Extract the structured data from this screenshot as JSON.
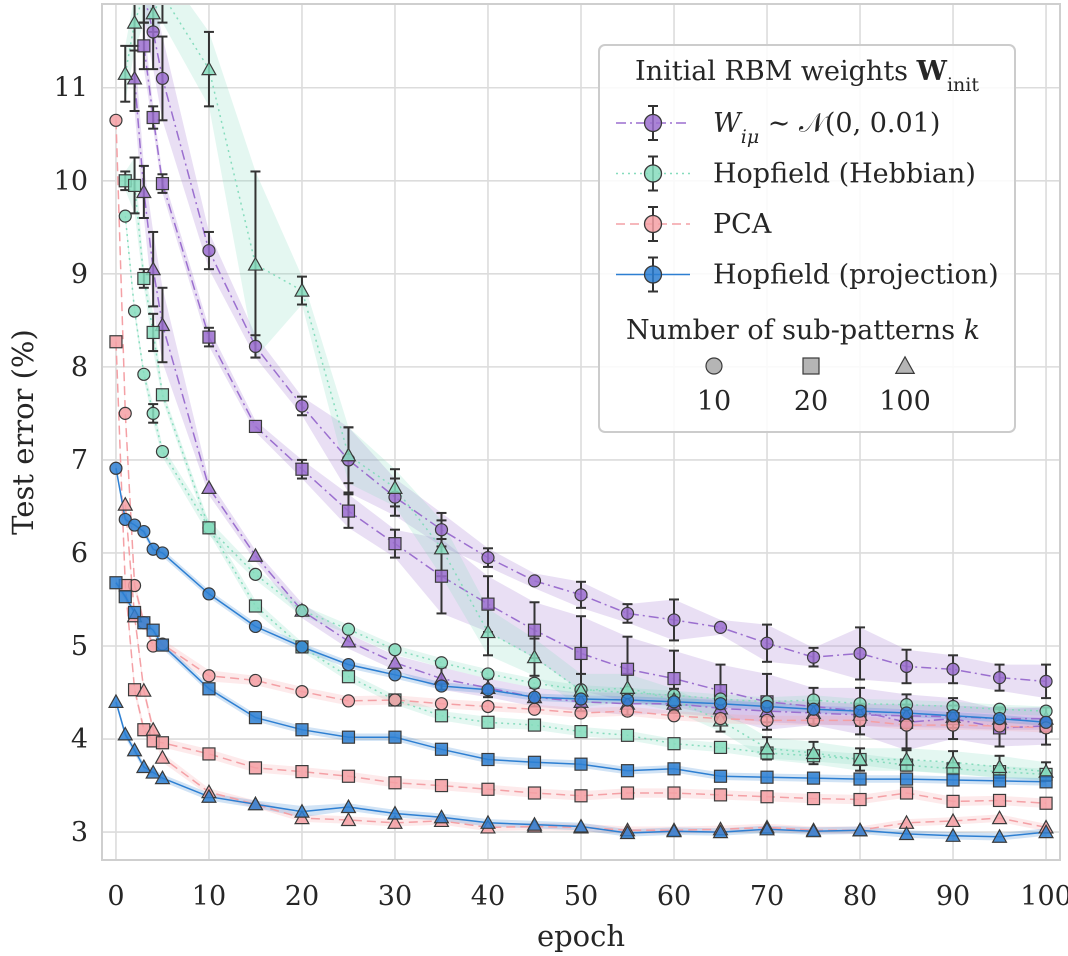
{
  "chart_data": {
    "type": "line",
    "xlabel": "epoch",
    "ylabel": "Test error (%)",
    "xlim": [
      -1.5,
      101.5
    ],
    "ylim": [
      2.7,
      11.9
    ],
    "xticks": [
      0,
      10,
      20,
      30,
      40,
      50,
      60,
      70,
      80,
      90,
      100
    ],
    "yticks": [
      3,
      4,
      5,
      6,
      7,
      8,
      9,
      10,
      11
    ],
    "grid": true,
    "x": [
      0,
      1,
      2,
      3,
      4,
      5,
      10,
      15,
      20,
      25,
      30,
      35,
      40,
      45,
      50,
      55,
      60,
      65,
      70,
      75,
      80,
      85,
      90,
      95,
      100
    ],
    "legend": {
      "placement": "top-right",
      "title": "Initial RBM weights W_init",
      "title_main": "Initial RBM weights ",
      "title_bold": "W",
      "title_sub": "init",
      "entries": [
        {
          "label": "W_iμ ~ N(0, 0.01)",
          "label_main": "W",
          "label_sub": "iμ",
          "label_rest": " ∼ 𝒩(0, 0.01)",
          "color": "#9b6fcf",
          "linestyle": "dashdot"
        },
        {
          "label": "Hopfield (Hebbian)",
          "color": "#86dcbd",
          "linestyle": "dotted"
        },
        {
          "label": "PCA",
          "color": "#f4a0a5",
          "linestyle": "dashed"
        },
        {
          "label": "Hopfield (projection)",
          "color": "#2d7fd2",
          "linestyle": "solid"
        }
      ],
      "marker_title": "Number of sub-patterns k",
      "marker_title_main": "Number of sub-patterns ",
      "marker_title_var": "k",
      "markers": [
        {
          "shape": "circle",
          "label": "10"
        },
        {
          "shape": "square",
          "label": "20"
        },
        {
          "shape": "triangle",
          "label": "100"
        }
      ]
    },
    "series": [
      {
        "group": "Random",
        "k": "10",
        "marker": "circle",
        "color": "#9b6fcf",
        "linestyle": "dashdot",
        "y": [
          null,
          null,
          null,
          12.0,
          11.6,
          11.1,
          9.25,
          8.22,
          7.58,
          7.0,
          6.6,
          6.25,
          5.95,
          5.7,
          5.55,
          5.35,
          5.28,
          5.2,
          5.03,
          4.88,
          4.92,
          4.78,
          4.75,
          4.66,
          4.62
        ],
        "err": [
          0,
          0,
          0,
          0.3,
          0.4,
          0.45,
          0.2,
          0.12,
          0.1,
          0.35,
          0.2,
          0.18,
          0.1,
          0.08,
          0.14,
          0.1,
          0.22,
          0.08,
          0.2,
          0.1,
          0.28,
          0.18,
          0.15,
          0.14,
          0.18
        ]
      },
      {
        "group": "Random",
        "k": "20",
        "marker": "square",
        "color": "#9b6fcf",
        "linestyle": "dashdot",
        "y": [
          null,
          null,
          null,
          11.45,
          10.68,
          9.97,
          8.32,
          7.36,
          6.9,
          6.45,
          6.1,
          5.75,
          5.45,
          5.17,
          4.92,
          4.75,
          4.65,
          4.52,
          4.4,
          4.35,
          4.3,
          4.18,
          4.22,
          4.12,
          4.14
        ],
        "err": [
          0,
          0,
          0,
          0.25,
          0.12,
          0.1,
          0.1,
          0.06,
          0.1,
          0.18,
          0.15,
          0.4,
          0.3,
          0.3,
          0.4,
          0.35,
          0.3,
          0.28,
          0.3,
          0.2,
          0.25,
          0.3,
          0.22,
          0.2,
          0.2
        ]
      },
      {
        "group": "Random",
        "k": "100",
        "marker": "triangle",
        "color": "#9b6fcf",
        "linestyle": "dashdot",
        "y": [
          null,
          null,
          11.1,
          9.88,
          9.05,
          8.45,
          6.7,
          5.97,
          5.38,
          5.05,
          4.82,
          4.65,
          4.55,
          4.45,
          4.4,
          4.38,
          4.38,
          4.33,
          4.3,
          4.28,
          4.26,
          4.25,
          4.24,
          4.22,
          4.22
        ],
        "err": [
          0,
          0,
          0.35,
          0.28,
          0.4,
          0.4,
          0.08,
          0.06,
          0.08,
          0.08,
          0.08,
          0.12,
          0.1,
          0.1,
          0.1,
          0.12,
          0.1,
          0.1,
          0.12,
          0.12,
          0.12,
          0.12,
          0.12,
          0.12,
          0.12
        ]
      },
      {
        "group": "Hebbian",
        "k": "10",
        "marker": "circle",
        "color": "#86dcbd",
        "linestyle": "dotted",
        "y": [
          null,
          9.62,
          8.6,
          7.92,
          7.5,
          7.09,
          6.27,
          5.77,
          5.38,
          5.18,
          4.96,
          4.82,
          4.7,
          4.6,
          4.53,
          4.5,
          4.47,
          4.43,
          4.4,
          4.42,
          4.38,
          4.37,
          4.35,
          4.32,
          4.3
        ],
        "err": [
          0,
          0.06,
          0.06,
          0.06,
          0.1,
          0.06,
          0.08,
          0.06,
          0.06,
          0.05,
          0.05,
          0.05,
          0.05,
          0.05,
          0.05,
          0.05,
          0.05,
          0.05,
          0.05,
          0.05,
          0.05,
          0.05,
          0.05,
          0.05,
          0.05
        ]
      },
      {
        "group": "Hebbian",
        "k": "20",
        "marker": "square",
        "color": "#86dcbd",
        "linestyle": "dotted",
        "y": [
          null,
          10.0,
          9.95,
          8.95,
          8.37,
          7.7,
          6.27,
          5.43,
          4.99,
          4.67,
          4.42,
          4.25,
          4.18,
          4.15,
          4.08,
          4.04,
          3.95,
          3.91,
          3.85,
          3.82,
          3.78,
          3.72,
          3.68,
          3.65,
          3.62
        ],
        "err": [
          0,
          0.1,
          0.3,
          0.1,
          0.2,
          0.06,
          0.06,
          0.06,
          0.05,
          0.05,
          0.05,
          0.05,
          0.06,
          0.05,
          0.05,
          0.05,
          0.05,
          0.05,
          0.06,
          0.06,
          0.06,
          0.06,
          0.06,
          0.06,
          0.06
        ]
      },
      {
        "group": "Hebbian",
        "k": "100",
        "marker": "triangle",
        "color": "#86dcbd",
        "linestyle": "dotted",
        "y": [
          null,
          11.15,
          11.7,
          12.0,
          11.8,
          12.0,
          11.2,
          9.1,
          8.82,
          7.05,
          6.7,
          6.05,
          5.15,
          4.88,
          4.52,
          4.55,
          4.42,
          4.2,
          3.9,
          3.85,
          3.78,
          3.78,
          3.75,
          3.7,
          3.65
        ],
        "err": [
          0,
          0.3,
          0.3,
          0.3,
          0.2,
          0.3,
          0.4,
          1.0,
          0.15,
          0.3,
          0.2,
          0.3,
          0.25,
          0.2,
          0.18,
          0.15,
          0.12,
          0.12,
          0.12,
          0.12,
          0.12,
          0.12,
          0.12,
          0.12,
          0.1
        ]
      },
      {
        "group": "PCA",
        "k": "10",
        "marker": "circle",
        "color": "#f4a0a5",
        "linestyle": "dashed",
        "y": [
          10.65,
          7.5,
          5.65,
          5.25,
          5.0,
          5.02,
          4.68,
          4.63,
          4.51,
          4.41,
          4.42,
          4.38,
          4.35,
          4.32,
          4.28,
          4.3,
          4.25,
          4.22,
          4.2,
          4.2,
          4.2,
          4.15,
          4.15,
          4.14,
          4.12
        ],
        "err": [
          0,
          0,
          0.06,
          0.05,
          0.05,
          0.05,
          0.06,
          0.05,
          0.05,
          0.05,
          0.05,
          0.05,
          0.05,
          0.05,
          0.05,
          0.05,
          0.05,
          0.05,
          0.05,
          0.05,
          0.05,
          0.05,
          0.05,
          0.05,
          0.05
        ]
      },
      {
        "group": "PCA",
        "k": "20",
        "marker": "square",
        "color": "#f4a0a5",
        "linestyle": "dashed",
        "y": [
          8.27,
          5.65,
          4.53,
          4.1,
          3.98,
          3.96,
          3.84,
          3.69,
          3.65,
          3.6,
          3.53,
          3.5,
          3.46,
          3.42,
          3.39,
          3.42,
          3.42,
          3.4,
          3.38,
          3.36,
          3.35,
          3.42,
          3.33,
          3.34,
          3.31
        ],
        "err": [
          0,
          0.05,
          0.05,
          0.05,
          0.05,
          0.05,
          0.05,
          0.05,
          0.05,
          0.05,
          0.05,
          0.05,
          0.05,
          0.05,
          0.05,
          0.05,
          0.05,
          0.05,
          0.05,
          0.05,
          0.05,
          0.05,
          0.05,
          0.05,
          0.05
        ]
      },
      {
        "group": "PCA",
        "k": "100",
        "marker": "triangle",
        "color": "#f4a0a5",
        "linestyle": "dashed",
        "y": [
          null,
          6.52,
          5.32,
          4.52,
          4.1,
          3.8,
          3.43,
          3.3,
          3.15,
          3.13,
          3.1,
          3.12,
          3.05,
          3.06,
          3.05,
          3.02,
          3.02,
          3.03,
          3.05,
          3.02,
          3.02,
          3.1,
          3.12,
          3.15,
          3.05
        ],
        "err": [
          0,
          0,
          0.05,
          0.05,
          0.05,
          0.05,
          0.04,
          0.04,
          0.04,
          0.04,
          0.04,
          0.04,
          0.04,
          0.04,
          0.04,
          0.04,
          0.04,
          0.04,
          0.04,
          0.04,
          0.04,
          0.04,
          0.04,
          0.04,
          0.04
        ]
      },
      {
        "group": "Projection",
        "k": "10",
        "marker": "circle",
        "color": "#2d7fd2",
        "linestyle": "solid",
        "y": [
          6.91,
          6.36,
          6.3,
          6.23,
          6.04,
          6.0,
          5.56,
          5.21,
          4.99,
          4.8,
          4.69,
          4.57,
          4.53,
          4.45,
          4.43,
          4.42,
          4.4,
          4.38,
          4.35,
          4.32,
          4.3,
          4.28,
          4.25,
          4.22,
          4.18
        ],
        "err": [
          0,
          0.04,
          0.04,
          0.04,
          0.04,
          0.04,
          0.04,
          0.04,
          0.04,
          0.04,
          0.04,
          0.04,
          0.04,
          0.04,
          0.04,
          0.04,
          0.04,
          0.04,
          0.04,
          0.04,
          0.04,
          0.04,
          0.04,
          0.04,
          0.04
        ]
      },
      {
        "group": "Projection",
        "k": "20",
        "marker": "square",
        "color": "#2d7fd2",
        "linestyle": "solid",
        "y": [
          5.68,
          5.53,
          5.36,
          5.25,
          5.17,
          5.01,
          4.54,
          4.23,
          4.1,
          4.02,
          4.02,
          3.89,
          3.78,
          3.75,
          3.73,
          3.66,
          3.68,
          3.6,
          3.59,
          3.58,
          3.57,
          3.57,
          3.56,
          3.55,
          3.54
        ],
        "err": [
          0,
          0.04,
          0.04,
          0.04,
          0.04,
          0.04,
          0.04,
          0.04,
          0.04,
          0.04,
          0.04,
          0.04,
          0.04,
          0.04,
          0.04,
          0.04,
          0.04,
          0.04,
          0.04,
          0.04,
          0.04,
          0.04,
          0.04,
          0.04,
          0.04
        ]
      },
      {
        "group": "Projection",
        "k": "100",
        "marker": "triangle",
        "color": "#2d7fd2",
        "linestyle": "solid",
        "y": [
          4.4,
          4.05,
          3.88,
          3.7,
          3.64,
          3.58,
          3.38,
          3.3,
          3.22,
          3.27,
          3.2,
          3.16,
          3.1,
          3.08,
          3.06,
          2.99,
          3.01,
          3.0,
          3.03,
          3.01,
          3.02,
          2.98,
          2.96,
          2.95,
          3.0
        ],
        "err": [
          0,
          0.04,
          0.04,
          0.04,
          0.04,
          0.04,
          0.04,
          0.04,
          0.06,
          0.04,
          0.04,
          0.04,
          0.04,
          0.04,
          0.04,
          0.04,
          0.04,
          0.04,
          0.04,
          0.04,
          0.04,
          0.04,
          0.04,
          0.04,
          0.04
        ]
      }
    ]
  }
}
